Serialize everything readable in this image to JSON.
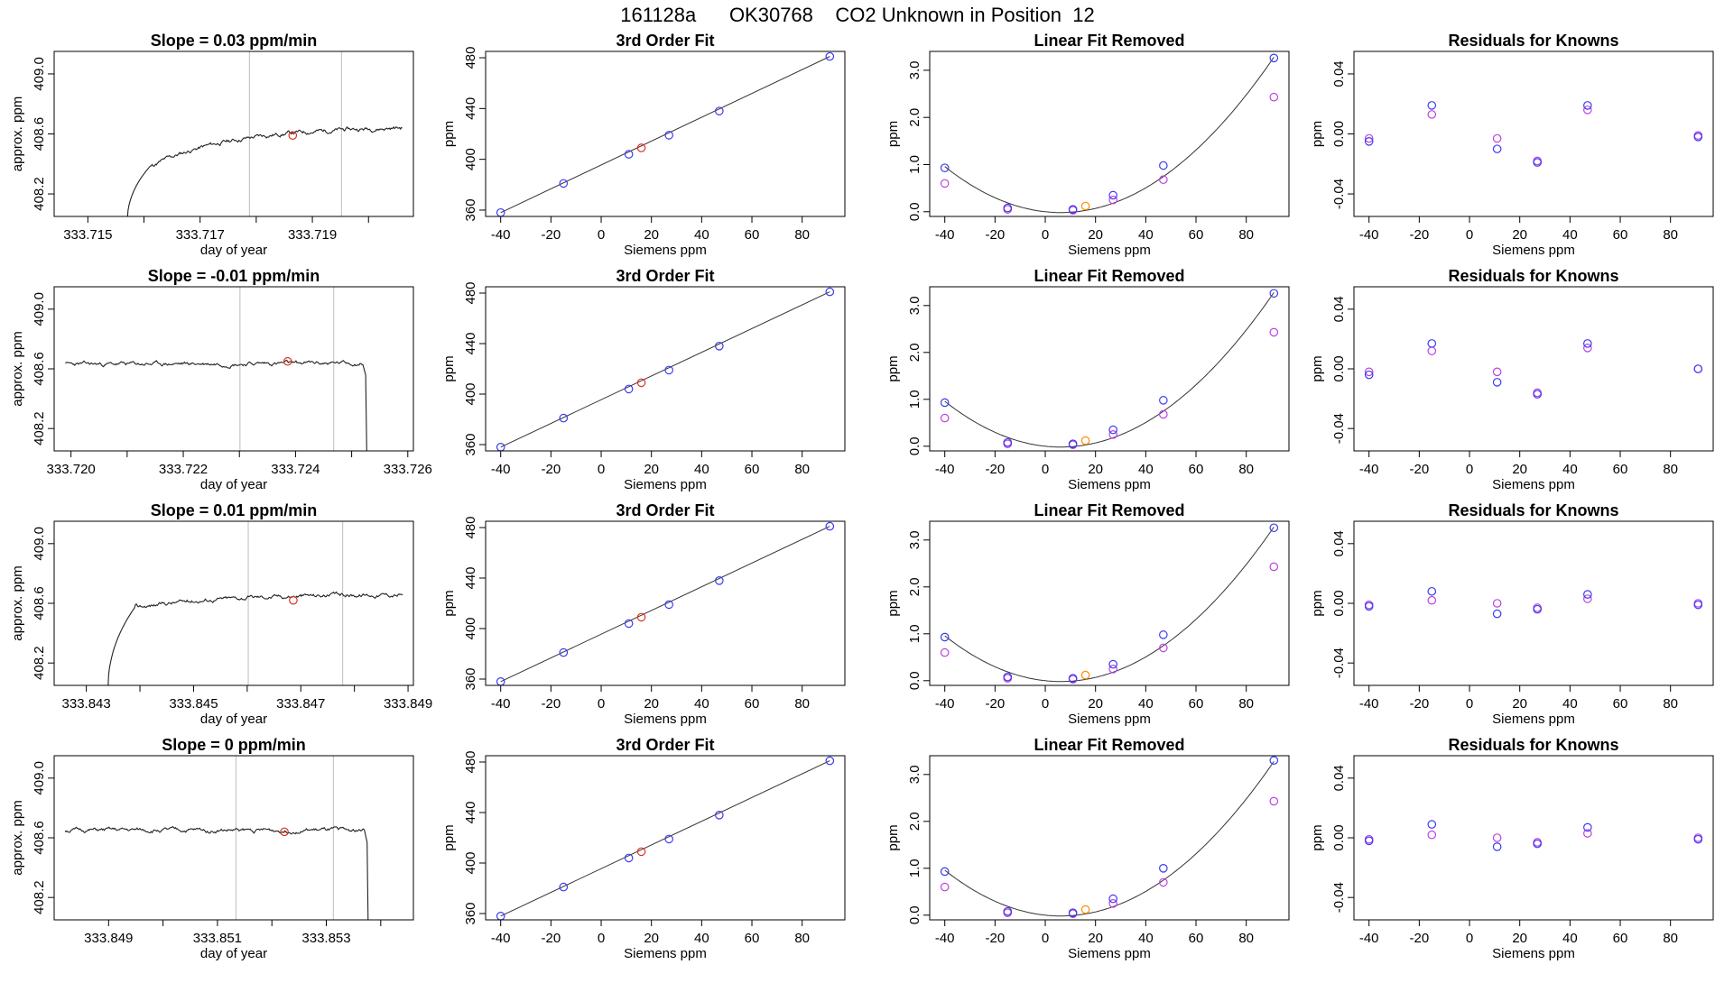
{
  "figure": {
    "title": "161128a      OK30768    CO2 Unknown in Position  12"
  },
  "colors": {
    "trace": "#222222",
    "vline": "#c8c8c8",
    "unknown": "#e0301e",
    "known_fit": "#3b3bf0",
    "known_raw": "#c040e0",
    "unknown_fit": "#ff8c00",
    "fit_line": "#333333"
  },
  "chart_data": [
    {
      "type": "line",
      "panel": "timeseries",
      "title": "Slope =  0.03  ppm/min",
      "xlabel": "day of year",
      "ylabel": "approx. ppm",
      "xlim": [
        333.7144,
        333.7208
      ],
      "ylim": [
        408.05,
        409.15
      ],
      "xticks": [
        333.715,
        333.716,
        333.717,
        333.718,
        333.719,
        333.72
      ],
      "xtick_labels": [
        "333.715",
        "",
        "333.717",
        "",
        "333.719",
        ""
      ],
      "yticks": [
        408.2,
        408.6,
        409.0
      ],
      "ytick_labels": [
        "408.2",
        "408.6",
        "409.0"
      ],
      "start": 333.7157,
      "end": 333.7206,
      "plateau_at": 333.7161,
      "plateau_level": 408.38,
      "final_level": 408.64,
      "base_level": 408.0,
      "drop_at": null,
      "vlines": [
        333.71788,
        333.71952
      ],
      "unknown_point": [
        333.71865,
        408.59
      ],
      "seed": 11
    },
    {
      "type": "line",
      "panel": "timeseries",
      "title": "Slope =  -0.01  ppm/min",
      "xlabel": "day of year",
      "ylabel": "approx. ppm",
      "xlim": [
        333.7197,
        333.7261
      ],
      "ylim": [
        408.05,
        409.15
      ],
      "xticks": [
        333.72,
        333.721,
        333.722,
        333.723,
        333.724,
        333.725,
        333.726
      ],
      "xtick_labels": [
        "333.720",
        "",
        "333.722",
        "",
        "333.724",
        "",
        "333.726"
      ],
      "yticks": [
        408.2,
        408.6,
        409.0
      ],
      "ytick_labels": [
        "408.2",
        "408.6",
        "409.0"
      ],
      "start": 333.7199,
      "end": 333.7252,
      "plateau_at": null,
      "plateau_level": 408.63,
      "final_level": 408.64,
      "base_level": 408.0,
      "drop_at": 333.72525,
      "vlines": [
        333.72301,
        333.72468
      ],
      "unknown_point": [
        333.72386,
        408.65
      ],
      "seed": 23
    },
    {
      "type": "line",
      "panel": "timeseries",
      "title": "Slope =  0.01  ppm/min",
      "xlabel": "day of year",
      "ylabel": "approx. ppm",
      "xlim": [
        333.8424,
        333.8491
      ],
      "ylim": [
        408.05,
        409.15
      ],
      "xticks": [
        333.843,
        333.844,
        333.845,
        333.846,
        333.847,
        333.848,
        333.849
      ],
      "xtick_labels": [
        "333.843",
        "",
        "333.845",
        "",
        "333.847",
        "",
        "333.849"
      ],
      "yticks": [
        408.2,
        408.6,
        409.0
      ],
      "ytick_labels": [
        "408.2",
        "408.6",
        "409.0"
      ],
      "start": 333.8434,
      "end": 333.8489,
      "plateau_at": 333.8439,
      "plateau_level": 408.57,
      "final_level": 408.66,
      "base_level": 408.0,
      "drop_at": null,
      "vlines": [
        333.84602,
        333.84778
      ],
      "unknown_point": [
        333.84686,
        408.62
      ],
      "seed": 37
    },
    {
      "type": "line",
      "panel": "timeseries",
      "title": "Slope =  0  ppm/min",
      "xlabel": "day of year",
      "ylabel": "approx. ppm",
      "xlim": [
        333.848,
        333.8546
      ],
      "ylim": [
        408.05,
        409.15
      ],
      "xticks": [
        333.849,
        333.85,
        333.851,
        333.852,
        333.853,
        333.854
      ],
      "xtick_labels": [
        "333.849",
        "",
        "333.851",
        "",
        "333.853",
        ""
      ],
      "yticks": [
        408.2,
        408.6,
        409.0
      ],
      "ytick_labels": [
        "408.2",
        "408.6",
        "409.0"
      ],
      "start": 333.8482,
      "end": 333.8537,
      "plateau_at": null,
      "plateau_level": 408.65,
      "final_level": 408.65,
      "base_level": 408.0,
      "drop_at": 333.85375,
      "vlines": [
        333.85134,
        333.85313
      ],
      "unknown_point": [
        333.85223,
        408.64
      ],
      "seed": 51
    },
    {
      "type": "scatter",
      "panel": "fit",
      "title": "3rd Order Fit",
      "xlabel": "Siemens ppm",
      "ylabel": "ppm",
      "xlim": [
        -46,
        97
      ],
      "ylim": [
        355,
        485
      ],
      "xticks": [
        -40,
        -20,
        0,
        20,
        40,
        60,
        80
      ],
      "yticks": [
        360,
        400,
        440,
        480
      ],
      "knowns": [
        [
          -40,
          358
        ],
        [
          -15,
          381
        ],
        [
          11,
          404
        ],
        [
          27,
          419
        ],
        [
          47,
          438
        ],
        [
          91,
          481
        ]
      ],
      "unknown": [
        16,
        409
      ],
      "fit_line": [
        [
          -40,
          358
        ],
        [
          91,
          481
        ]
      ]
    },
    {
      "type": "scatter",
      "panel": "fit",
      "title": "3rd Order Fit",
      "xlabel": "Siemens ppm",
      "ylabel": "ppm",
      "xlim": [
        -46,
        97
      ],
      "ylim": [
        355,
        485
      ],
      "xticks": [
        -40,
        -20,
        0,
        20,
        40,
        60,
        80
      ],
      "yticks": [
        360,
        400,
        440,
        480
      ],
      "knowns": [
        [
          -40,
          358
        ],
        [
          -15,
          381
        ],
        [
          11,
          404
        ],
        [
          27,
          419
        ],
        [
          47,
          438
        ],
        [
          91,
          481
        ]
      ],
      "unknown": [
        16,
        409
      ],
      "fit_line": [
        [
          -40,
          358
        ],
        [
          91,
          481
        ]
      ]
    },
    {
      "type": "scatter",
      "panel": "fit",
      "title": "3rd Order Fit",
      "xlabel": "Siemens ppm",
      "ylabel": "ppm",
      "xlim": [
        -46,
        97
      ],
      "ylim": [
        355,
        485
      ],
      "xticks": [
        -40,
        -20,
        0,
        20,
        40,
        60,
        80
      ],
      "yticks": [
        360,
        400,
        440,
        480
      ],
      "knowns": [
        [
          -40,
          358
        ],
        [
          -15,
          381
        ],
        [
          11,
          404
        ],
        [
          27,
          419
        ],
        [
          47,
          438
        ],
        [
          91,
          481
        ]
      ],
      "unknown": [
        16,
        409
      ],
      "fit_line": [
        [
          -40,
          358
        ],
        [
          91,
          481
        ]
      ]
    },
    {
      "type": "scatter",
      "panel": "fit",
      "title": "3rd Order Fit",
      "xlabel": "Siemens ppm",
      "ylabel": "ppm",
      "xlim": [
        -46,
        97
      ],
      "ylim": [
        355,
        485
      ],
      "xticks": [
        -40,
        -20,
        0,
        20,
        40,
        60,
        80
      ],
      "yticks": [
        360,
        400,
        440,
        480
      ],
      "knowns": [
        [
          -40,
          358
        ],
        [
          -15,
          381
        ],
        [
          11,
          404
        ],
        [
          27,
          419
        ],
        [
          47,
          438
        ],
        [
          91,
          481
        ]
      ],
      "unknown": [
        16,
        409
      ],
      "fit_line": [
        [
          -40,
          358
        ],
        [
          91,
          481
        ]
      ]
    },
    {
      "type": "scatter",
      "panel": "linear_removed",
      "title": "Linear Fit Removed",
      "xlabel": "Siemens ppm",
      "ylabel": "ppm",
      "xlim": [
        -46,
        97
      ],
      "ylim": [
        -0.1,
        3.4
      ],
      "xticks": [
        -40,
        -20,
        0,
        20,
        40,
        60,
        80
      ],
      "yticks": [
        0.0,
        1.0,
        2.0,
        3.0
      ],
      "ytick_labels": [
        "0.0",
        "1.0",
        "2.0",
        "3.0"
      ],
      "curve": {
        "a0": 0.0,
        "a1": -0.00565,
        "a2": 0.0004578
      },
      "knowns_fit": [
        [
          -40,
          0.93
        ],
        [
          -15,
          0.08
        ],
        [
          11,
          0.05
        ],
        [
          27,
          0.35
        ],
        [
          47,
          0.98
        ],
        [
          91,
          3.26
        ]
      ],
      "knowns_raw": [
        [
          -40,
          0.6
        ],
        [
          -15,
          0.05
        ],
        [
          11,
          0.03
        ],
        [
          27,
          0.25
        ],
        [
          47,
          0.68
        ],
        [
          91,
          2.43
        ]
      ],
      "unknown": [
        16,
        0.12
      ]
    },
    {
      "type": "scatter",
      "panel": "linear_removed",
      "title": "Linear Fit Removed",
      "xlabel": "Siemens ppm",
      "ylabel": "ppm",
      "xlim": [
        -46,
        97
      ],
      "ylim": [
        -0.1,
        3.4
      ],
      "xticks": [
        -40,
        -20,
        0,
        20,
        40,
        60,
        80
      ],
      "yticks": [
        0.0,
        1.0,
        2.0,
        3.0
      ],
      "ytick_labels": [
        "0.0",
        "1.0",
        "2.0",
        "3.0"
      ],
      "curve": {
        "a0": 0.0,
        "a1": -0.00565,
        "a2": 0.0004578
      },
      "knowns_fit": [
        [
          -40,
          0.93
        ],
        [
          -15,
          0.08
        ],
        [
          11,
          0.05
        ],
        [
          27,
          0.35
        ],
        [
          47,
          0.98
        ],
        [
          91,
          3.26
        ]
      ],
      "knowns_raw": [
        [
          -40,
          0.6
        ],
        [
          -15,
          0.05
        ],
        [
          11,
          0.03
        ],
        [
          27,
          0.25
        ],
        [
          47,
          0.68
        ],
        [
          91,
          2.43
        ]
      ],
      "unknown": [
        16,
        0.12
      ]
    },
    {
      "type": "scatter",
      "panel": "linear_removed",
      "title": "Linear Fit Removed",
      "xlabel": "Siemens ppm",
      "ylabel": "ppm",
      "xlim": [
        -46,
        97
      ],
      "ylim": [
        -0.1,
        3.4
      ],
      "xticks": [
        -40,
        -20,
        0,
        20,
        40,
        60,
        80
      ],
      "yticks": [
        0.0,
        1.0,
        2.0,
        3.0
      ],
      "ytick_labels": [
        "0.0",
        "1.0",
        "2.0",
        "3.0"
      ],
      "curve": {
        "a0": 0.0,
        "a1": -0.00565,
        "a2": 0.0004578
      },
      "knowns_fit": [
        [
          -40,
          0.93
        ],
        [
          -15,
          0.08
        ],
        [
          11,
          0.05
        ],
        [
          27,
          0.35
        ],
        [
          47,
          0.98
        ],
        [
          91,
          3.26
        ]
      ],
      "knowns_raw": [
        [
          -40,
          0.6
        ],
        [
          -15,
          0.05
        ],
        [
          11,
          0.03
        ],
        [
          27,
          0.25
        ],
        [
          47,
          0.7
        ],
        [
          91,
          2.43
        ]
      ],
      "unknown": [
        16,
        0.12
      ]
    },
    {
      "type": "scatter",
      "panel": "linear_removed",
      "title": "Linear Fit Removed",
      "xlabel": "Siemens ppm",
      "ylabel": "ppm",
      "xlim": [
        -46,
        97
      ],
      "ylim": [
        -0.1,
        3.4
      ],
      "xticks": [
        -40,
        -20,
        0,
        20,
        40,
        60,
        80
      ],
      "yticks": [
        0.0,
        1.0,
        2.0,
        3.0
      ],
      "ytick_labels": [
        "0.0",
        "1.0",
        "2.0",
        "3.0"
      ],
      "curve": {
        "a0": 0.0,
        "a1": -0.00565,
        "a2": 0.0004578
      },
      "knowns_fit": [
        [
          -40,
          0.93
        ],
        [
          -15,
          0.08
        ],
        [
          11,
          0.05
        ],
        [
          27,
          0.35
        ],
        [
          47,
          1.0
        ],
        [
          91,
          3.3
        ]
      ],
      "knowns_raw": [
        [
          -40,
          0.6
        ],
        [
          -15,
          0.05
        ],
        [
          11,
          0.03
        ],
        [
          27,
          0.25
        ],
        [
          47,
          0.7
        ],
        [
          91,
          2.43
        ]
      ],
      "unknown": [
        16,
        0.12
      ]
    },
    {
      "type": "scatter",
      "panel": "residuals",
      "title": "Residuals for Knowns",
      "xlabel": "Siemens ppm",
      "ylabel": "ppm",
      "xlim": [
        -46,
        97
      ],
      "ylim": [
        -0.055,
        0.055
      ],
      "xticks": [
        -40,
        -20,
        0,
        20,
        40,
        60,
        80
      ],
      "yticks": [
        -0.04,
        0.0,
        0.04
      ],
      "ytick_labels": [
        "-0.04",
        "0.00",
        "0.04"
      ],
      "resid_fit": [
        [
          -40,
          -0.005
        ],
        [
          -15,
          0.019
        ],
        [
          11,
          -0.01
        ],
        [
          27,
          -0.019
        ],
        [
          47,
          0.019
        ],
        [
          91,
          -0.002
        ]
      ],
      "resid_raw": [
        [
          -40,
          -0.003
        ],
        [
          -15,
          0.013
        ],
        [
          11,
          -0.003
        ],
        [
          27,
          -0.018
        ],
        [
          47,
          0.016
        ],
        [
          91,
          -0.001
        ]
      ]
    },
    {
      "type": "scatter",
      "panel": "residuals",
      "title": "Residuals for Knowns",
      "xlabel": "Siemens ppm",
      "ylabel": "ppm",
      "xlim": [
        -46,
        97
      ],
      "ylim": [
        -0.055,
        0.055
      ],
      "xticks": [
        -40,
        -20,
        0,
        20,
        40,
        60,
        80
      ],
      "yticks": [
        -0.04,
        0.0,
        0.04
      ],
      "ytick_labels": [
        "-0.04",
        "0.00",
        "0.04"
      ],
      "resid_fit": [
        [
          -40,
          -0.004
        ],
        [
          -15,
          0.017
        ],
        [
          11,
          -0.009
        ],
        [
          27,
          -0.017
        ],
        [
          47,
          0.017
        ],
        [
          91,
          0.0
        ]
      ],
      "resid_raw": [
        [
          -40,
          -0.002
        ],
        [
          -15,
          0.012
        ],
        [
          11,
          -0.002
        ],
        [
          27,
          -0.016
        ],
        [
          47,
          0.014
        ],
        [
          91,
          0.0
        ]
      ]
    },
    {
      "type": "scatter",
      "panel": "residuals",
      "title": "Residuals for Knowns",
      "xlabel": "Siemens ppm",
      "ylabel": "ppm",
      "xlim": [
        -46,
        97
      ],
      "ylim": [
        -0.055,
        0.055
      ],
      "xticks": [
        -40,
        -20,
        0,
        20,
        40,
        60,
        80
      ],
      "yticks": [
        -0.04,
        0.0,
        0.04
      ],
      "ytick_labels": [
        "-0.04",
        "0.00",
        "0.04"
      ],
      "resid_fit": [
        [
          -40,
          -0.002
        ],
        [
          -15,
          0.008
        ],
        [
          11,
          -0.007
        ],
        [
          27,
          -0.004
        ],
        [
          47,
          0.006
        ],
        [
          91,
          -0.001
        ]
      ],
      "resid_raw": [
        [
          -40,
          -0.001
        ],
        [
          -15,
          0.002
        ],
        [
          11,
          0.0
        ],
        [
          27,
          -0.003
        ],
        [
          47,
          0.003
        ],
        [
          91,
          0.0
        ]
      ]
    },
    {
      "type": "scatter",
      "panel": "residuals",
      "title": "Residuals for Knowns",
      "xlabel": "Siemens ppm",
      "ylabel": "ppm",
      "xlim": [
        -46,
        97
      ],
      "ylim": [
        -0.055,
        0.055
      ],
      "xticks": [
        -40,
        -20,
        0,
        20,
        40,
        60,
        80
      ],
      "yticks": [
        -0.04,
        0.0,
        0.04
      ],
      "ytick_labels": [
        "-0.04",
        "0.00",
        "0.04"
      ],
      "resid_fit": [
        [
          -40,
          -0.002
        ],
        [
          -15,
          0.009
        ],
        [
          11,
          -0.006
        ],
        [
          27,
          -0.004
        ],
        [
          47,
          0.007
        ],
        [
          91,
          -0.001
        ]
      ],
      "resid_raw": [
        [
          -40,
          -0.001
        ],
        [
          -15,
          0.002
        ],
        [
          11,
          0.0
        ],
        [
          27,
          -0.003
        ],
        [
          47,
          0.003
        ],
        [
          91,
          0.0
        ]
      ]
    }
  ]
}
